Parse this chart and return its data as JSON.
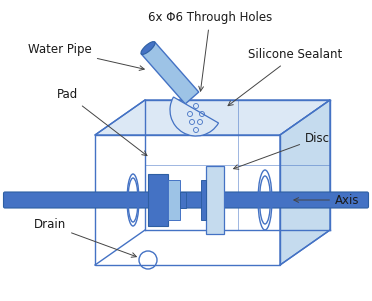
{
  "background_color": "#ffffff",
  "box_color": "#4472c4",
  "blue_dark": "#2e5fa3",
  "blue_mid": "#4472c4",
  "blue_light": "#9dc3e6",
  "blue_pale": "#dce8f5",
  "blue_lighter": "#c5dbee",
  "labels": {
    "water_pipe": "Water Pipe",
    "through_holes": "6x Φ6 Through Holes",
    "silicone": "Silicone Sealant",
    "pad": "Pad",
    "disc": "Disc",
    "axis": "Axis",
    "drain": "Drain"
  }
}
